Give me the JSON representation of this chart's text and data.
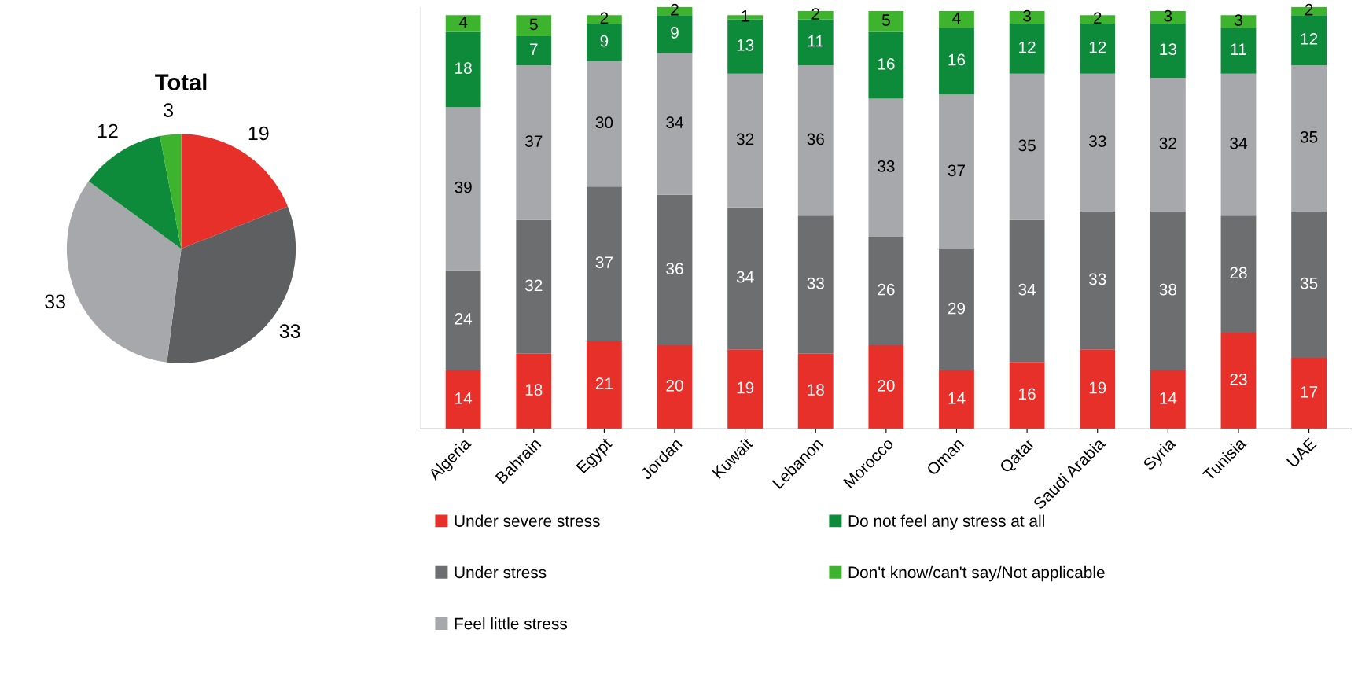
{
  "chart_data": [
    {
      "type": "pie",
      "title": "Total",
      "categories": [
        null,
        null,
        null,
        null,
        null
      ],
      "values": [
        19,
        33,
        33,
        12,
        3
      ],
      "colors": [
        "#e8302a",
        "#5e5f61",
        "#a7a8ab",
        "#0d8a3a",
        "#3db32e"
      ],
      "data_labels": true
    },
    {
      "type": "bar",
      "stacked": true,
      "data_labels": true,
      "legend": "bottom",
      "grid": false,
      "categories": [
        "Algeria",
        "Bahrain",
        "Egypt",
        "Jordan",
        "Kuwait",
        "Lebanon",
        "Morocco",
        "Oman",
        "Qatar",
        "Saudi Arabia",
        "Syria",
        "Tunisia",
        "UAE"
      ],
      "series": [
        {
          "name": "Under severe stress",
          "color": "#e8302a",
          "values": [
            14,
            18,
            21,
            20,
            19,
            18,
            20,
            14,
            16,
            19,
            14,
            23,
            17
          ]
        },
        {
          "name": "Under stress",
          "color": "#6d6e70",
          "values": [
            24,
            32,
            37,
            36,
            34,
            33,
            26,
            29,
            34,
            33,
            38,
            28,
            35
          ]
        },
        {
          "name": "Feel little stress",
          "color": "#a7a8ab",
          "values": [
            39,
            37,
            30,
            34,
            32,
            36,
            33,
            37,
            35,
            33,
            32,
            34,
            35
          ]
        },
        {
          "name": "Do not feel any stress at all",
          "color": "#0d8a3a",
          "values": [
            18,
            7,
            9,
            9,
            13,
            11,
            16,
            16,
            12,
            12,
            13,
            11,
            12
          ]
        },
        {
          "name": "Don't know/can't say/Not applicable",
          "color": "#3db32e",
          "values": [
            4,
            5,
            2,
            2,
            1,
            2,
            5,
            4,
            3,
            2,
            3,
            3,
            2
          ]
        }
      ]
    }
  ]
}
